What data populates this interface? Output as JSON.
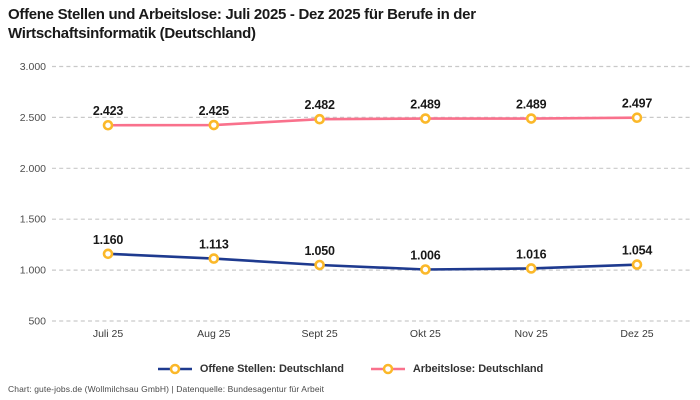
{
  "title_lines": [
    "Offene Stellen und Arbeitslose: Juli 2025 - Dez 2025 für Berufe in der",
    "Wirtschaftsinformatik (Deutschland)"
  ],
  "footer": {
    "text": "Chart: gute-jobs.de (Wollmilchsau GmbH) | Datenquelle: Bundesagentur für Arbeit"
  },
  "colors": {
    "title": "#191919",
    "grid": "#c9c9c9",
    "axis_text": "#4d4d4d",
    "data_label": "#191919",
    "marker_stroke": "#fbb829",
    "marker_fill": "#ffffff",
    "series_offene_stellen": "#1e3a8f",
    "series_arbeitslose": "#f9718c",
    "background": "#ffffff"
  },
  "chart_data": {
    "type": "line",
    "categories": [
      "Juli 25",
      "Aug 25",
      "Sept 25",
      "Okt 25",
      "Nov 25",
      "Dez 25"
    ],
    "series": [
      {
        "name": "Offene Stellen: Deutschland",
        "color": "#1e3a8f",
        "values": [
          1160,
          1113,
          1050,
          1006,
          1016,
          1054
        ],
        "labels": [
          "1.160",
          "1.113",
          "1.050",
          "1.006",
          "1.016",
          "1.054"
        ]
      },
      {
        "name": "Arbeitslose: Deutschland",
        "color": "#f9718c",
        "values": [
          2423,
          2425,
          2482,
          2489,
          2489,
          2497
        ],
        "labels": [
          "2.423",
          "2.425",
          "2.482",
          "2.489",
          "2.489",
          "2.497"
        ]
      }
    ],
    "y_ticks": [
      {
        "value": 500,
        "label": "500"
      },
      {
        "value": 1000,
        "label": "1.000"
      },
      {
        "value": 1500,
        "label": "1.500"
      },
      {
        "value": 2000,
        "label": "2.000"
      },
      {
        "value": 2500,
        "label": "2.500"
      },
      {
        "value": 3000,
        "label": "3.000"
      }
    ],
    "ylim": [
      500,
      3000
    ],
    "grid": "horizontal-dashed",
    "legend_position": "bottom",
    "marker": {
      "fill": "#ffffff",
      "stroke": "#fbb829"
    }
  }
}
